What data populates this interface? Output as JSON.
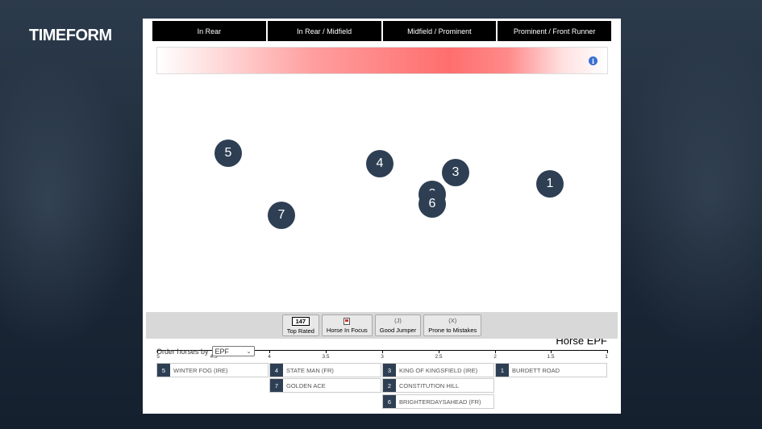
{
  "logo": "TIMEFORM",
  "positions": [
    "In Rear",
    "In Rear / Midfield",
    "Midfield / Prominent",
    "Prominent / Front Runner"
  ],
  "heat_info_icon": "info-icon",
  "horses": [
    {
      "number": "5",
      "epf": 4.36
    },
    {
      "number": "4",
      "epf": 3.0
    },
    {
      "number": "3",
      "epf": 2.35
    },
    {
      "number": "1",
      "epf": 1.48
    },
    {
      "number": "2",
      "epf": 2.54
    },
    {
      "number": "6",
      "epf": 2.54
    },
    {
      "number": "7",
      "epf": 3.9
    }
  ],
  "axis": {
    "title": "Horse EPF",
    "ticks": [
      "5",
      "4.5",
      "4",
      "3.5",
      "3",
      "2.5",
      "2",
      "1.5",
      "1"
    ]
  },
  "legend": {
    "top_rated_value": "147",
    "top_rated_label": "Top Rated",
    "focus_label": "Horse In Focus",
    "jumper_mark": "(J)",
    "jumper_label": "Good Jumper",
    "mistakes_mark": "(X)",
    "mistakes_label": "Prone to Mistakes"
  },
  "order": {
    "label": "Order horses by",
    "selected": "EPF"
  },
  "runners": [
    {
      "number": "5",
      "name": "WINTER FOG (IRE)"
    },
    {
      "number": "4",
      "name": "STATE MAN (FR)"
    },
    {
      "number": "3",
      "name": "KING OF KINGSFIELD (IRE)"
    },
    {
      "number": "1",
      "name": "BURDETT ROAD"
    },
    {
      "number": "7",
      "name": "GOLDEN ACE"
    },
    {
      "number": "2",
      "name": "CONSTITUTION HILL"
    },
    {
      "number": "6",
      "name": "BRIGHTERDAYSAHEAD (FR)"
    }
  ],
  "colors": {
    "marker": "#2e3f54",
    "heat_peak": "#ff6e6e"
  }
}
